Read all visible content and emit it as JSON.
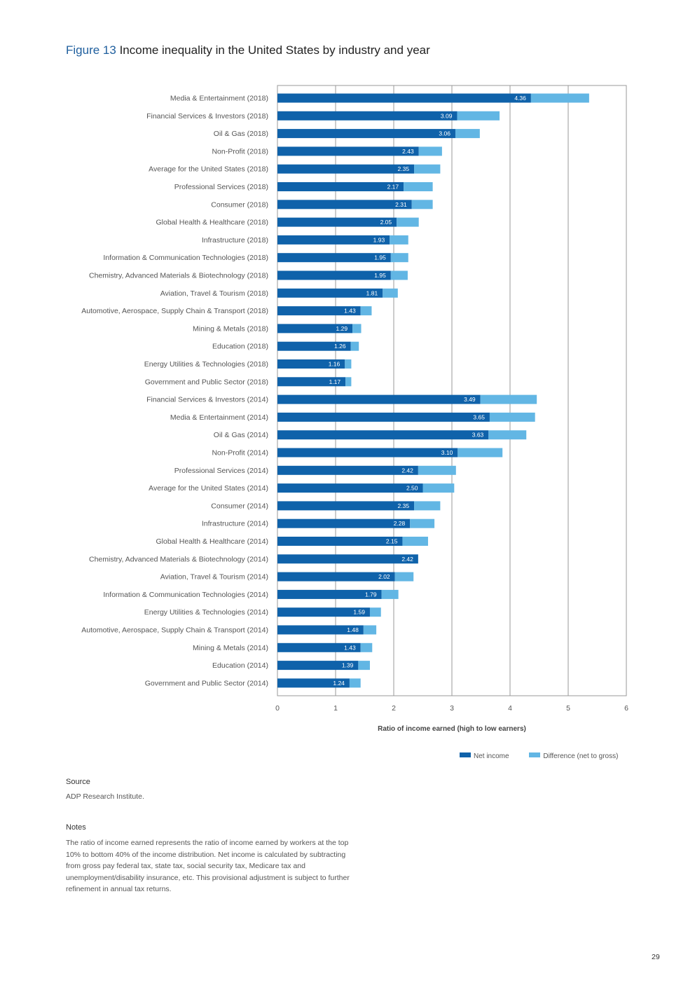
{
  "figure": {
    "number": "Figure 13",
    "title": "Income inequality in the United States by industry and year"
  },
  "chart_data": {
    "type": "bar",
    "orientation": "horizontal",
    "stacked": true,
    "xlabel": "Ratio of income earned (high to low earners)",
    "xlim": [
      0,
      6
    ],
    "xticks": [
      0,
      1,
      2,
      3,
      4,
      5,
      6
    ],
    "grid": true,
    "legend_position": "bottom-right",
    "colors": {
      "net": "#0f62aa",
      "difference": "#62b6e4"
    },
    "series": [
      {
        "name": "Net income",
        "key": "net"
      },
      {
        "name": "Difference (net to gross)",
        "key": "difference"
      }
    ],
    "rows": [
      {
        "category": "Media & Entertainment (2018)",
        "net": 4.36,
        "net_label": "4.36",
        "difference": 1.0
      },
      {
        "category": "Financial Services & Investors (2018)",
        "net": 3.09,
        "net_label": "3.09",
        "difference": 0.73
      },
      {
        "category": "Oil & Gas (2018)",
        "net": 3.06,
        "net_label": "3.06",
        "difference": 0.42
      },
      {
        "category": "Non-Profit (2018)",
        "net": 2.43,
        "net_label": "2.43",
        "difference": 0.4
      },
      {
        "category": "Average for the United States (2018)",
        "net": 2.35,
        "net_label": "2.35",
        "difference": 0.45
      },
      {
        "category": "Professional Services (2018)",
        "net": 2.17,
        "net_label": "2.17",
        "difference": 0.5
      },
      {
        "category": "Consumer (2018)",
        "net": 2.31,
        "net_label": "2.31",
        "difference": 0.36
      },
      {
        "category": "Global Health & Healthcare (2018)",
        "net": 2.05,
        "net_label": "2.05",
        "difference": 0.38
      },
      {
        "category": "Infrastructure (2018)",
        "net": 1.93,
        "net_label": "1.93",
        "difference": 0.32
      },
      {
        "category": "Information & Communication Technologies (2018)",
        "net": 1.95,
        "net_label": "1.95",
        "difference": 0.3
      },
      {
        "category": "Chemistry, Advanced Materials & Biotechnology (2018)",
        "net": 1.95,
        "net_label": "1.95",
        "difference": 0.29
      },
      {
        "category": "Aviation, Travel & Tourism (2018)",
        "net": 1.81,
        "net_label": "1.81",
        "difference": 0.26
      },
      {
        "category": "Automotive, Aerospace, Supply Chain & Transport (2018)",
        "net": 1.43,
        "net_label": "1.43",
        "difference": 0.19
      },
      {
        "category": "Mining & Metals (2018)",
        "net": 1.29,
        "net_label": "1.29",
        "difference": 0.15
      },
      {
        "category": "Education (2018)",
        "net": 1.26,
        "net_label": "1.26",
        "difference": 0.14
      },
      {
        "category": "Energy Utilities & Technologies (2018)",
        "net": 1.16,
        "net_label": "1.16",
        "difference": 0.11
      },
      {
        "category": "Government and Public Sector (2018)",
        "net": 1.17,
        "net_label": "1.17",
        "difference": 0.1
      },
      {
        "category": "Financial Services & Investors (2014)",
        "net": 3.49,
        "net_label": "3.49",
        "difference": 0.97
      },
      {
        "category": "Media & Entertainment (2014)",
        "net": 3.65,
        "net_label": "3.65",
        "difference": 0.78
      },
      {
        "category": "Oil & Gas (2014)",
        "net": 3.63,
        "net_label": "3.63",
        "difference": 0.65
      },
      {
        "category": "Non-Profit (2014)",
        "net": 3.1,
        "net_label": "3.10",
        "difference": 0.77
      },
      {
        "category": "Professional Services (2014)",
        "net": 2.42,
        "net_label": "2.42",
        "difference": 0.65
      },
      {
        "category": "Average for the United States (2014)",
        "net": 2.5,
        "net_label": "2.50",
        "difference": 0.54
      },
      {
        "category": "Consumer (2014)",
        "net": 2.35,
        "net_label": "2.35",
        "difference": 0.45
      },
      {
        "category": "Infrastructure (2014)",
        "net": 2.28,
        "net_label": "2.28",
        "difference": 0.42
      },
      {
        "category": "Global Health & Healthcare (2014)",
        "net": 2.15,
        "net_label": "2.15",
        "difference": 0.44
      },
      {
        "category": "Chemistry, Advanced Materials & Biotechnology (2014)",
        "net": 2.42,
        "net_label": "2.42",
        "difference": 0.0
      },
      {
        "category": "Aviation, Travel & Tourism (2014)",
        "net": 2.02,
        "net_label": "2.02",
        "difference": 0.32
      },
      {
        "category": "Information & Communication Technologies (2014)",
        "net": 1.79,
        "net_label": "1.79",
        "difference": 0.29
      },
      {
        "category": "Energy Utilities & Technologies (2014)",
        "net": 1.59,
        "net_label": "1.59",
        "difference": 0.19
      },
      {
        "category": "Automotive, Aerospace, Supply Chain & Transport (2014)",
        "net": 1.48,
        "net_label": "1.48",
        "difference": 0.22
      },
      {
        "category": "Mining & Metals (2014)",
        "net": 1.43,
        "net_label": "1.43",
        "difference": 0.2
      },
      {
        "category": "Education (2014)",
        "net": 1.39,
        "net_label": "1.39",
        "difference": 0.2
      },
      {
        "category": "Government and Public Sector (2014)",
        "net": 1.24,
        "net_label": "1.24",
        "difference": 0.19
      }
    ]
  },
  "source": {
    "heading": "Source",
    "text": "ADP Research Institute."
  },
  "notes": {
    "heading": "Notes",
    "text": "The ratio of income earned represents the ratio of income earned by workers at the top 10% to bottom 40% of the income distribution. Net income is calculated by subtracting from gross pay federal tax, state tax, social security tax, Medicare tax and unemployment/disability insurance, etc. This provisional adjustment is subject to further refinement in annual tax returns."
  },
  "page_number": "29"
}
